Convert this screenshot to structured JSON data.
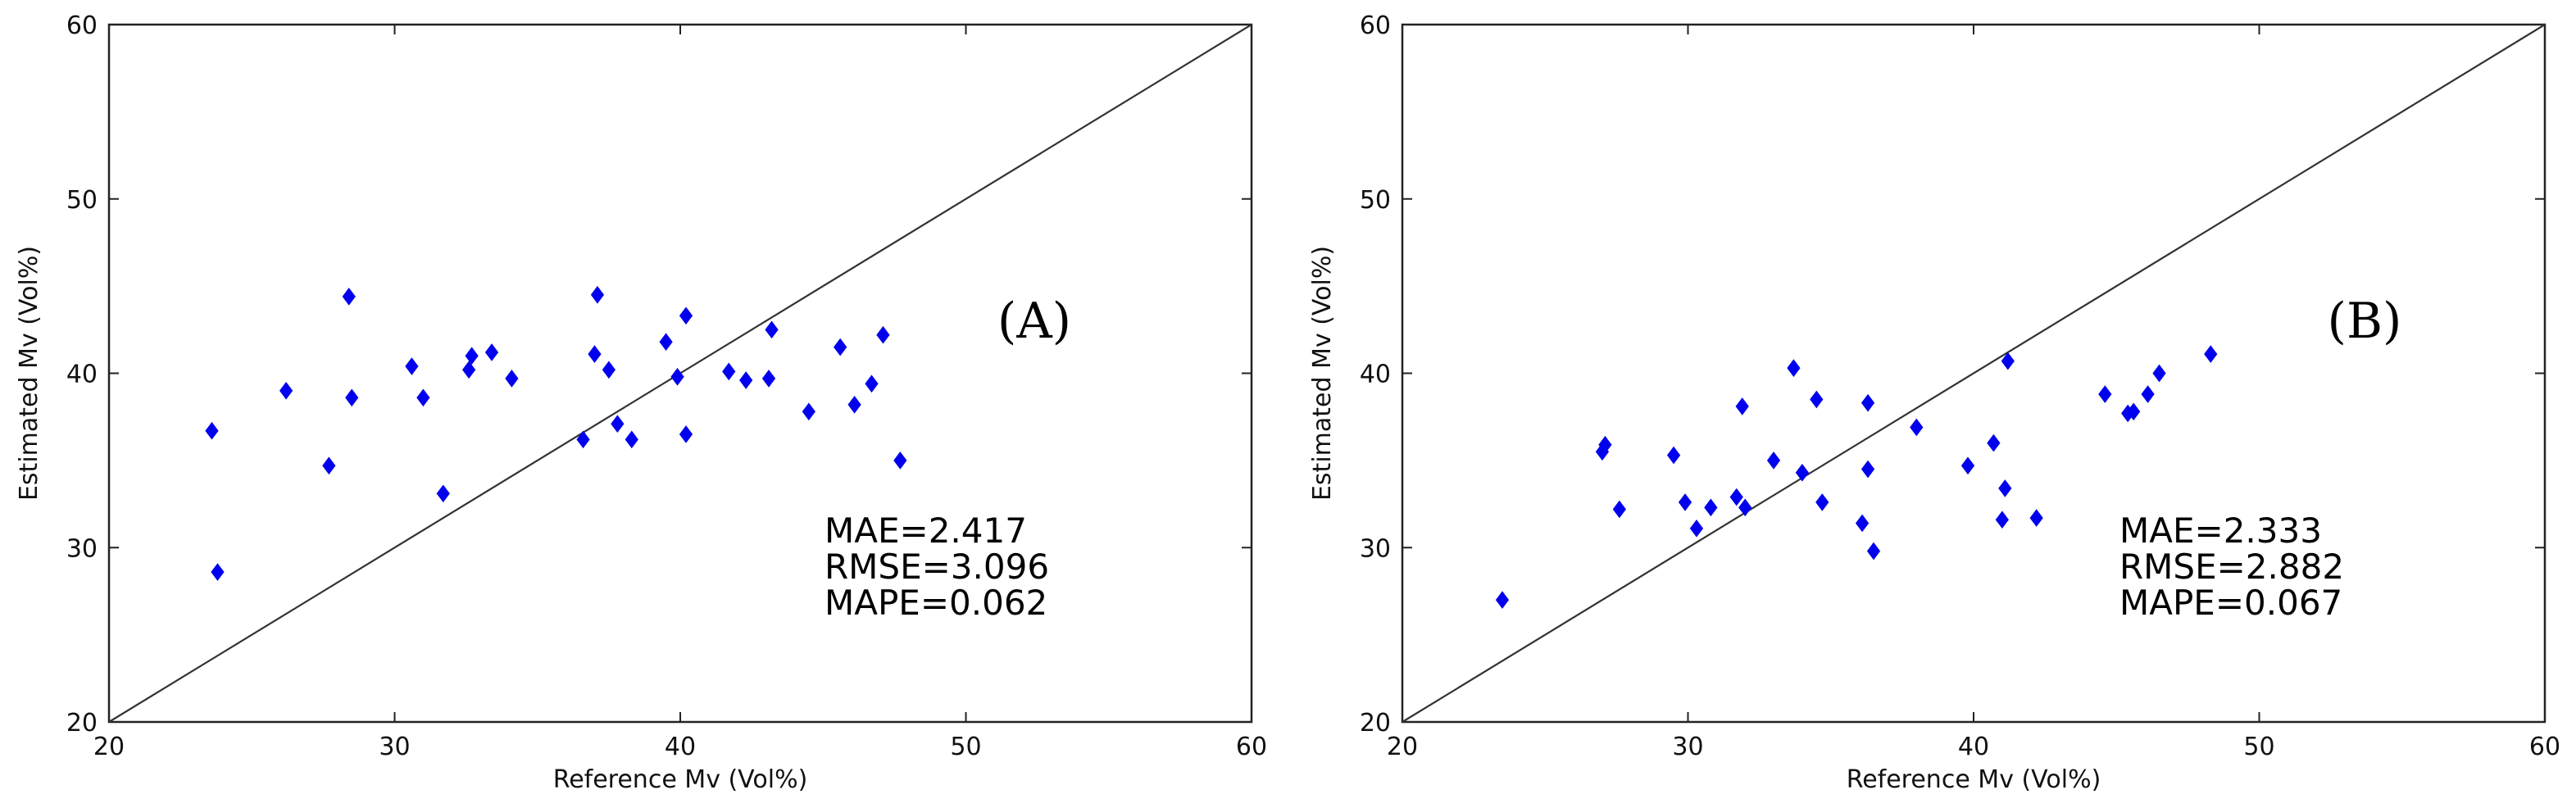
{
  "chart_data": [
    {
      "type": "scatter",
      "panel_label": "(A)",
      "xlabel": "Reference Mv (Vol%)",
      "ylabel": "Estimated Mv (Vol%)",
      "xlim": [
        20,
        60
      ],
      "ylim": [
        20,
        60
      ],
      "xticks": [
        "20",
        "30",
        "40",
        "50",
        "60"
      ],
      "yticks": [
        "20",
        "30",
        "40",
        "50",
        "60"
      ],
      "reference_line": "y=x",
      "marker_color": "#0000ee",
      "stats": [
        "MAE=2.417",
        "RMSE=3.096",
        "MAPE=0.062"
      ],
      "points": [
        [
          23.6,
          36.7
        ],
        [
          23.8,
          28.6
        ],
        [
          26.2,
          39.0
        ],
        [
          27.7,
          34.7
        ],
        [
          28.4,
          44.4
        ],
        [
          28.5,
          38.6
        ],
        [
          30.6,
          40.4
        ],
        [
          31.0,
          38.6
        ],
        [
          31.7,
          33.1
        ],
        [
          32.6,
          40.2
        ],
        [
          32.7,
          41.0
        ],
        [
          33.4,
          41.2
        ],
        [
          34.1,
          39.7
        ],
        [
          36.6,
          36.2
        ],
        [
          37.0,
          41.1
        ],
        [
          37.1,
          44.5
        ],
        [
          37.5,
          40.2
        ],
        [
          37.8,
          37.1
        ],
        [
          38.3,
          36.2
        ],
        [
          39.5,
          41.8
        ],
        [
          39.9,
          39.8
        ],
        [
          40.2,
          43.3
        ],
        [
          40.2,
          36.5
        ],
        [
          41.7,
          40.1
        ],
        [
          42.3,
          39.6
        ],
        [
          43.1,
          39.7
        ],
        [
          43.2,
          42.5
        ],
        [
          44.5,
          37.8
        ],
        [
          45.6,
          41.5
        ],
        [
          46.1,
          38.2
        ],
        [
          46.7,
          39.4
        ],
        [
          47.1,
          42.2
        ],
        [
          47.7,
          35.0
        ]
      ]
    },
    {
      "type": "scatter",
      "panel_label": "(B)",
      "xlabel": "Reference Mv (Vol%)",
      "ylabel": "Estimated Mv (Vol%)",
      "xlim": [
        20,
        60
      ],
      "ylim": [
        20,
        60
      ],
      "xticks": [
        "20",
        "30",
        "40",
        "50",
        "60"
      ],
      "yticks": [
        "20",
        "30",
        "40",
        "50",
        "60"
      ],
      "reference_line": "y=x",
      "marker_color": "#0000ee",
      "stats": [
        "MAE=2.333",
        "RMSE=2.882",
        "MAPE=0.067"
      ],
      "points": [
        [
          23.5,
          27.0
        ],
        [
          27.0,
          35.5
        ],
        [
          27.1,
          35.9
        ],
        [
          27.6,
          32.2
        ],
        [
          29.5,
          35.3
        ],
        [
          29.9,
          32.6
        ],
        [
          30.3,
          31.1
        ],
        [
          30.8,
          32.3
        ],
        [
          31.7,
          32.9
        ],
        [
          31.9,
          38.1
        ],
        [
          32.0,
          32.3
        ],
        [
          33.0,
          35.0
        ],
        [
          33.7,
          40.3
        ],
        [
          34.0,
          34.3
        ],
        [
          34.5,
          38.5
        ],
        [
          34.7,
          32.6
        ],
        [
          36.1,
          31.4
        ],
        [
          36.3,
          34.5
        ],
        [
          36.3,
          38.3
        ],
        [
          36.5,
          29.8
        ],
        [
          38.0,
          36.9
        ],
        [
          39.8,
          34.7
        ],
        [
          40.7,
          36.0
        ],
        [
          41.0,
          31.6
        ],
        [
          41.1,
          33.4
        ],
        [
          41.2,
          40.7
        ],
        [
          42.2,
          31.7
        ],
        [
          44.6,
          38.8
        ],
        [
          45.4,
          37.7
        ],
        [
          45.6,
          37.8
        ],
        [
          46.1,
          38.8
        ],
        [
          46.5,
          40.0
        ],
        [
          48.3,
          41.1
        ]
      ]
    }
  ]
}
